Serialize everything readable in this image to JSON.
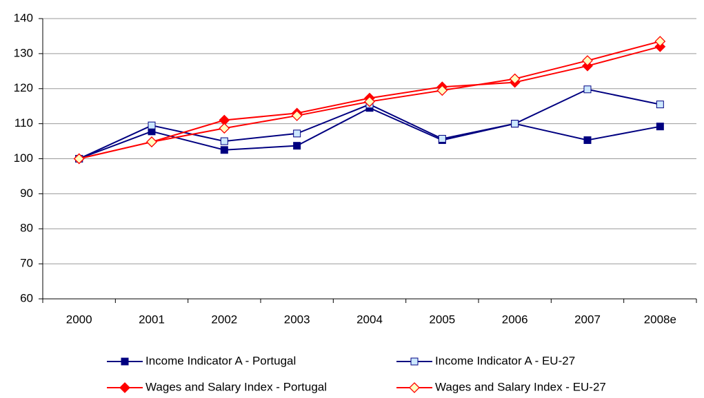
{
  "chart_data": {
    "type": "line",
    "categories": [
      "2000",
      "2001",
      "2002",
      "2003",
      "2004",
      "2005",
      "2006",
      "2007",
      "2008e"
    ],
    "series": [
      {
        "name": "Income Indicator A - Portugal",
        "color": "#000080",
        "marker": "square",
        "marker_fill": "#000080",
        "values": [
          100,
          107.8,
          102.5,
          103.7,
          114.5,
          105.3,
          110,
          105.3,
          109.2
        ]
      },
      {
        "name": "Income Indicator A - EU-27",
        "color": "#000080",
        "marker": "square",
        "marker_fill": "#cce8ff",
        "values": [
          100,
          109.5,
          105,
          107.2,
          115.5,
          105.7,
          110,
          119.8,
          115.5
        ]
      },
      {
        "name": "Wages and Salary Index - Portugal",
        "color": "#ff0000",
        "marker": "diamond",
        "marker_fill": "#ff0000",
        "values": [
          100,
          104.8,
          111,
          113,
          117.3,
          120.5,
          121.8,
          126.5,
          132
        ]
      },
      {
        "name": "Wages and Salary Index - EU-27",
        "color": "#ff0000",
        "marker": "diamond",
        "marker_fill": "#ffffc0",
        "values": [
          100,
          104.8,
          108.7,
          112.3,
          116.3,
          119.5,
          122.8,
          128,
          133.5
        ]
      }
    ],
    "ylim": [
      60,
      140
    ],
    "yticks": [
      60,
      70,
      80,
      90,
      100,
      110,
      120,
      130,
      140
    ],
    "grid": true
  }
}
